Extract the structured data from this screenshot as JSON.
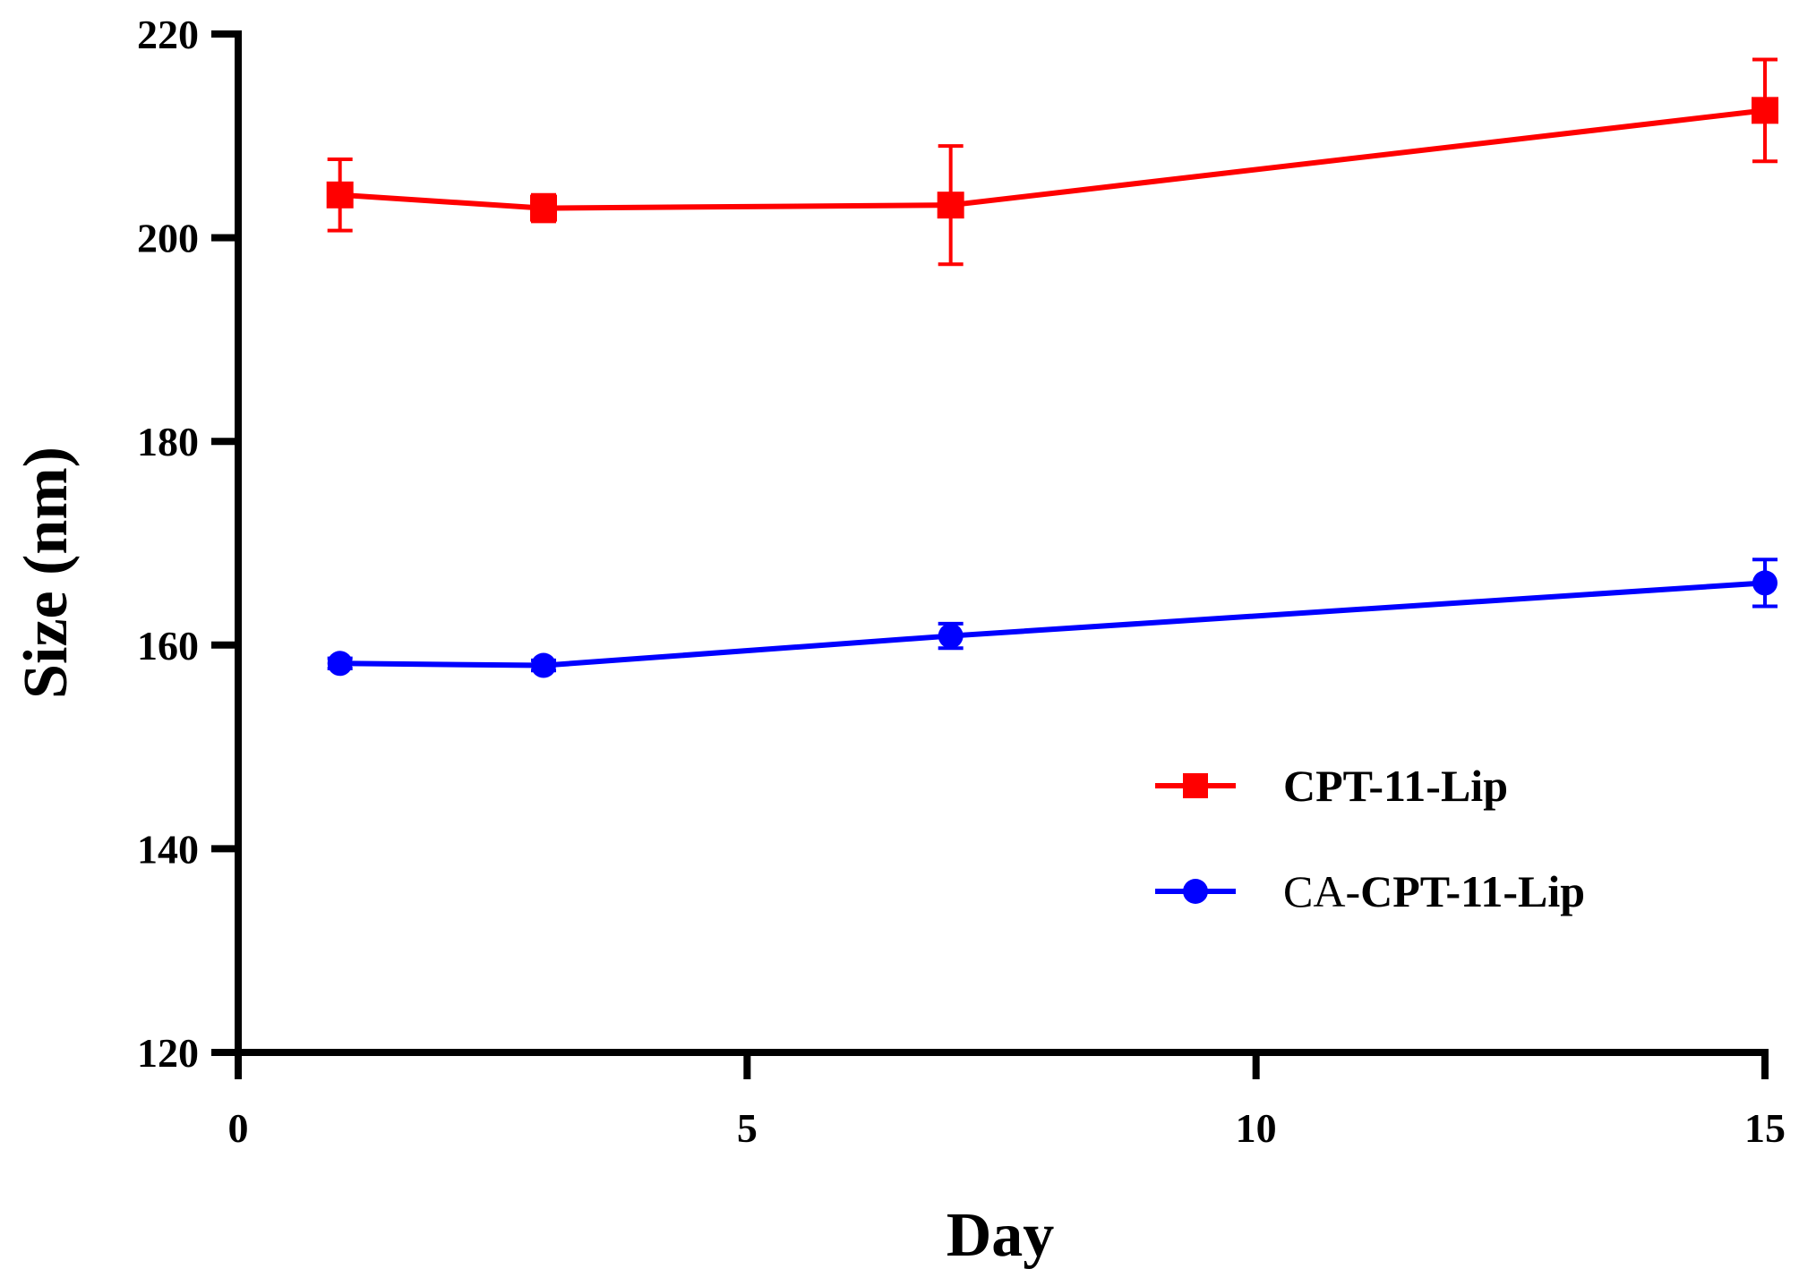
{
  "chart_data": {
    "type": "line",
    "title": "",
    "xlabel": "Day",
    "ylabel": "Size (nm)",
    "xlim": [
      0,
      15
    ],
    "ylim": [
      120,
      220
    ],
    "xticks": [
      0,
      5,
      10,
      15
    ],
    "yticks": [
      120,
      140,
      160,
      180,
      200,
      220
    ],
    "grid": false,
    "legend_position": "center-right",
    "series": [
      {
        "name": "CPT-11-Lip",
        "color": "#ff0000",
        "marker": "square",
        "x": [
          1,
          3,
          7,
          15
        ],
        "y": [
          204.2,
          202.9,
          203.2,
          212.5
        ],
        "error": [
          3.5,
          1.3,
          5.8,
          5.0
        ]
      },
      {
        "name": "CA-CPT-11-Lip",
        "name_prefix": "CA-",
        "name_rest": "CPT-11-Lip",
        "color": "#0000ff",
        "marker": "circle",
        "x": [
          1,
          3,
          7,
          15
        ],
        "y": [
          158.2,
          158.0,
          160.9,
          166.1
        ],
        "error": [
          0.5,
          0.5,
          1.2,
          2.3
        ]
      }
    ]
  }
}
